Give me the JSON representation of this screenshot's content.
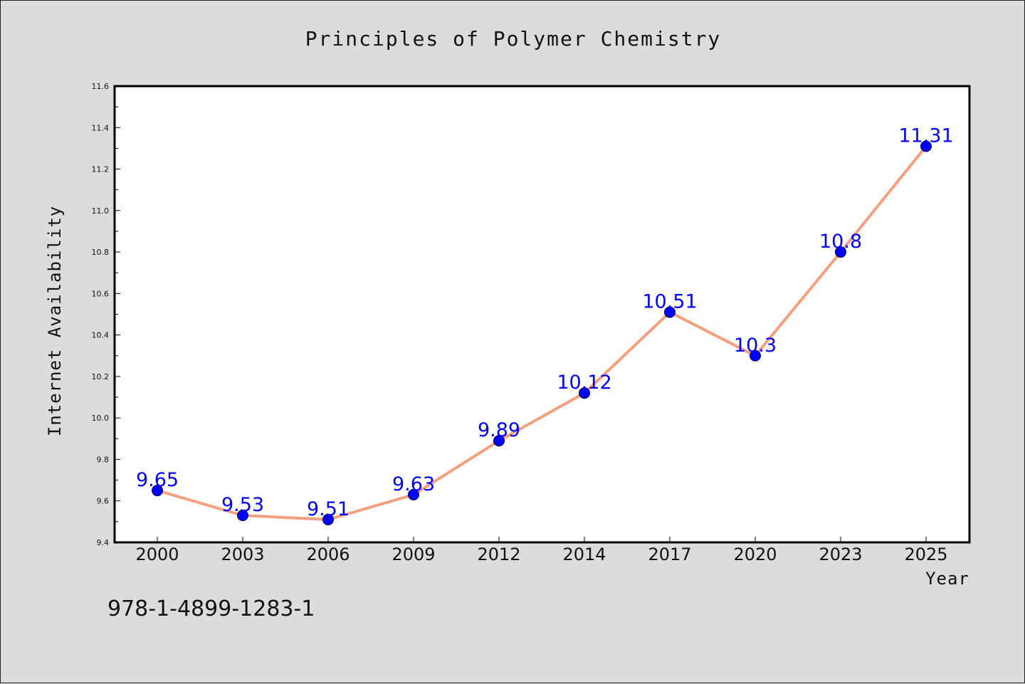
{
  "chart_data": {
    "type": "line",
    "title": "Principles of Polymer Chemistry",
    "xlabel": "Year",
    "ylabel": "Internet Availability",
    "categories": [
      "2000",
      "2003",
      "2006",
      "2009",
      "2012",
      "2014",
      "2017",
      "2020",
      "2023",
      "2025"
    ],
    "series": [
      {
        "values": [
          9.65,
          9.53,
          9.51,
          9.63,
          9.89,
          10.12,
          10.51,
          10.3,
          10.8,
          11.31
        ],
        "data_labels": [
          "9.65",
          "9.53",
          "9.51",
          "9.63",
          "9.89",
          "10.12",
          "10.51",
          "10.3",
          "10.8",
          "11.31"
        ]
      }
    ],
    "ylim": [
      9.4,
      11.6
    ],
    "yticks": [
      "9.4",
      "9.6",
      "9.8",
      "10.0",
      "10.2",
      "10.4",
      "10.6",
      "10.8",
      "11.0",
      "11.2",
      "11.4",
      "11.6"
    ],
    "grid": false,
    "legend": "none",
    "colors": {
      "line": "#f4a07e",
      "marker": "#0000ff",
      "data_label": "#0000ff",
      "background": "#dcdcdc",
      "plot_area": "#ffffff"
    }
  },
  "annotation": "978-1-4899-1283-1"
}
